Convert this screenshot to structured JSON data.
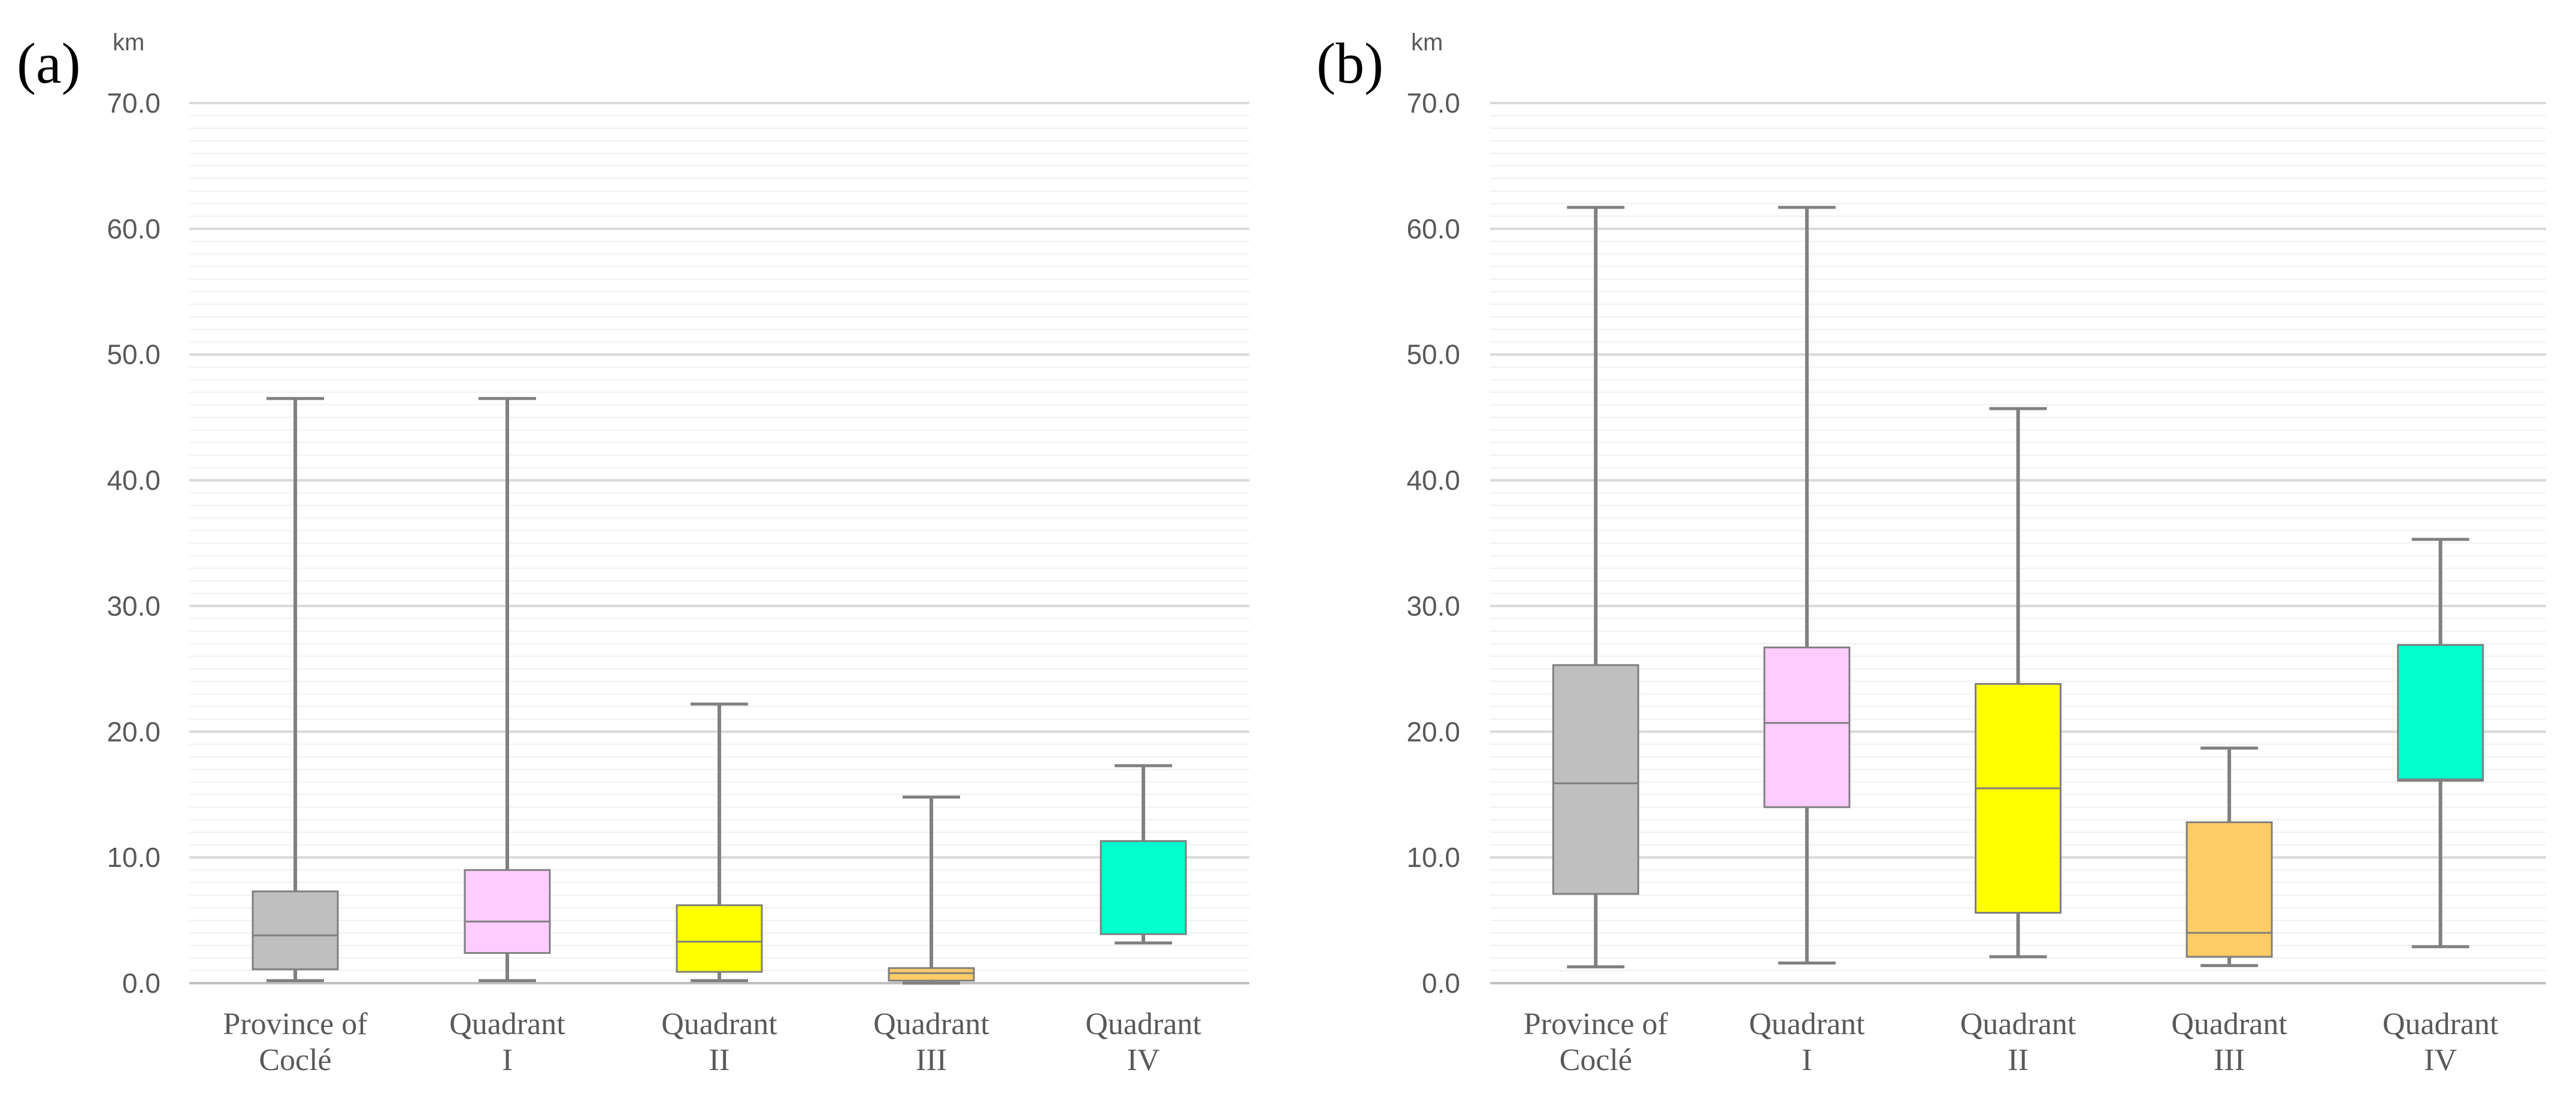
{
  "chart_data": [
    {
      "type": "box",
      "panel_label": "(a)",
      "ylabel": "km",
      "ylim": [
        0,
        70
      ],
      "yticks": [
        "0.0",
        "10.0",
        "20.0",
        "30.0",
        "40.0",
        "50.0",
        "60.0",
        "70.0"
      ],
      "grid": true,
      "categories": [
        {
          "line1": "Province of",
          "line2": "Coclé"
        },
        {
          "line1": "Quadrant",
          "line2": "I"
        },
        {
          "line1": "Quadrant",
          "line2": "II"
        },
        {
          "line1": "Quadrant",
          "line2": "III"
        },
        {
          "line1": "Quadrant",
          "line2": "IV"
        }
      ],
      "boxes": [
        {
          "min": 0.2,
          "q1": 1.1,
          "median": 3.8,
          "q3": 7.3,
          "max": 46.5,
          "color": "#bfbfbf"
        },
        {
          "min": 0.2,
          "q1": 2.4,
          "median": 4.9,
          "q3": 9.0,
          "max": 46.5,
          "color": "#ffccff"
        },
        {
          "min": 0.2,
          "q1": 0.9,
          "median": 3.3,
          "q3": 6.2,
          "max": 22.2,
          "color": "#ffff00"
        },
        {
          "min": 0.0,
          "q1": 0.2,
          "median": 0.8,
          "q3": 1.2,
          "max": 14.8,
          "color": "#ffcc66"
        },
        {
          "min": 3.2,
          "q1": 3.9,
          "median": 11.3,
          "q3": 11.3,
          "max": 17.3,
          "color": "#00ffcc"
        }
      ]
    },
    {
      "type": "box",
      "panel_label": "(b)",
      "ylabel": "km",
      "ylim": [
        0,
        70
      ],
      "yticks": [
        "0.0",
        "10.0",
        "20.0",
        "30.0",
        "40.0",
        "50.0",
        "60.0",
        "70.0"
      ],
      "grid": true,
      "categories": [
        {
          "line1": "Province of",
          "line2": "Coclé"
        },
        {
          "line1": "Quadrant",
          "line2": "I"
        },
        {
          "line1": "Quadrant",
          "line2": "II"
        },
        {
          "line1": "Quadrant",
          "line2": "III"
        },
        {
          "line1": "Quadrant",
          "line2": "IV"
        }
      ],
      "boxes": [
        {
          "min": 1.3,
          "q1": 7.1,
          "median": 15.9,
          "q3": 25.3,
          "max": 61.7,
          "color": "#bfbfbf"
        },
        {
          "min": 1.6,
          "q1": 14.0,
          "median": 20.7,
          "q3": 26.7,
          "max": 61.7,
          "color": "#ffccff"
        },
        {
          "min": 2.1,
          "q1": 5.6,
          "median": 15.5,
          "q3": 23.8,
          "max": 45.7,
          "color": "#ffff00"
        },
        {
          "min": 1.4,
          "q1": 2.1,
          "median": 4.0,
          "q3": 12.8,
          "max": 18.7,
          "color": "#ffcc66"
        },
        {
          "min": 2.9,
          "q1": 16.1,
          "median": 16.2,
          "q3": 26.9,
          "max": 35.3,
          "color": "#00ffcc"
        }
      ]
    }
  ]
}
